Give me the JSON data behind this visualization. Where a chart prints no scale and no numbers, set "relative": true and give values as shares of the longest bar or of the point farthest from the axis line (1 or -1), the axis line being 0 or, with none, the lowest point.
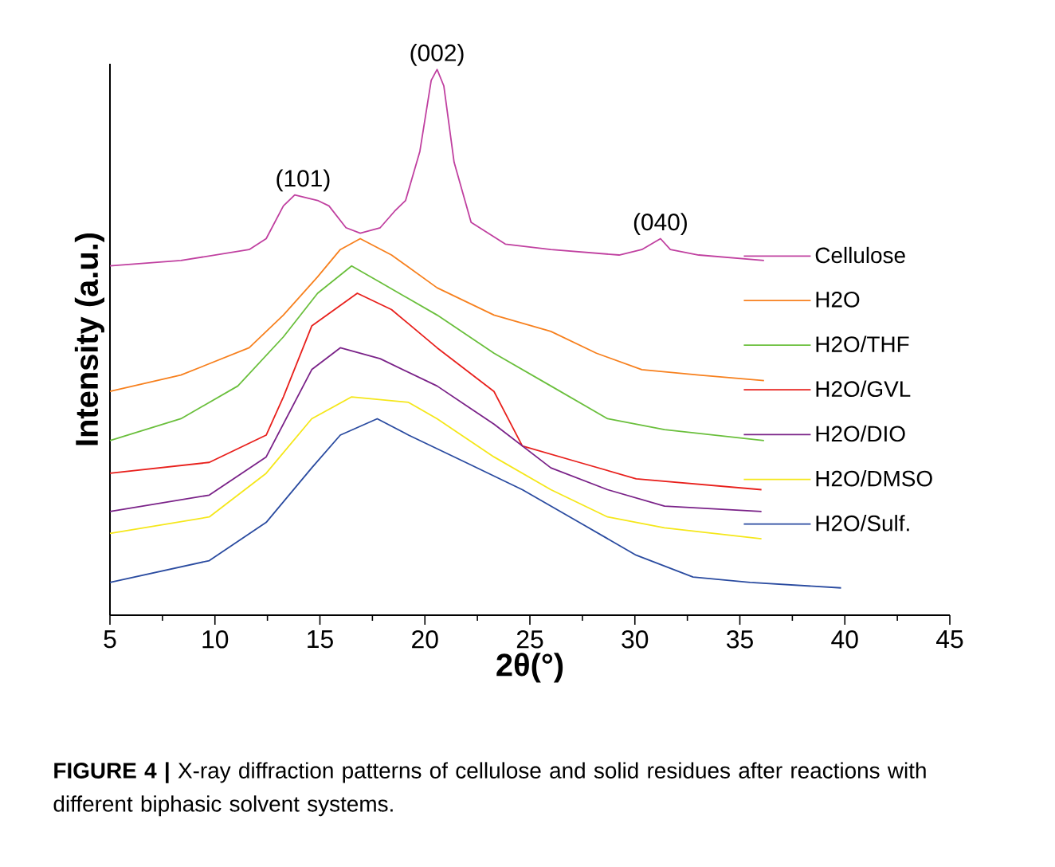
{
  "chart_data": {
    "type": "line",
    "relative": true,
    "xlabel": "2θ(°)",
    "ylabel": "Intensity (a.u.)",
    "xlim": [
      5,
      45
    ],
    "xticks": [
      5,
      10,
      15,
      20,
      25,
      30,
      35,
      40,
      45
    ],
    "tick_labels": "x",
    "legend": "right",
    "series": [
      {
        "name": "Cellulose",
        "color": "#c040a0",
        "x": [
          5,
          8.38,
          11.63,
          12.44,
          13.26,
          13.8,
          14.89,
          15.43,
          16.24,
          16.92,
          17.87,
          18.55,
          19.08,
          19.76,
          20.3,
          20.58,
          20.9,
          21.39,
          22.2,
          23.83,
          26,
          29.25,
          30.33,
          31.22,
          31.69,
          33.04,
          36.15
        ],
        "values": [
          0.64,
          0.65,
          0.67,
          0.69,
          0.75,
          0.77,
          0.76,
          0.75,
          0.71,
          0.7,
          0.71,
          0.74,
          0.76,
          0.85,
          0.98,
          1.0,
          0.97,
          0.83,
          0.72,
          0.68,
          0.67,
          0.66,
          0.67,
          0.69,
          0.67,
          0.66,
          0.65
        ]
      },
      {
        "name": "H2O",
        "color": "#f7801e",
        "x": [
          5,
          8.38,
          11.63,
          13.26,
          14.89,
          15.97,
          16.92,
          18.41,
          20.58,
          23.29,
          26,
          28.17,
          30.33,
          33.04,
          36.15
        ],
        "values": [
          0.41,
          0.44,
          0.49,
          0.55,
          0.62,
          0.67,
          0.69,
          0.66,
          0.6,
          0.55,
          0.52,
          0.48,
          0.45,
          0.44,
          0.43
        ]
      },
      {
        "name": "H2O/THF",
        "color": "#6abf3c",
        "x": [
          5,
          8.38,
          11.09,
          13.26,
          14.89,
          16.51,
          17.87,
          20.58,
          23.29,
          26,
          28.7,
          31.41,
          36.15
        ],
        "values": [
          0.32,
          0.36,
          0.42,
          0.51,
          0.59,
          0.64,
          0.61,
          0.55,
          0.48,
          0.42,
          0.36,
          0.34,
          0.32
        ]
      },
      {
        "name": "H2O/GVL",
        "color": "#e8201c",
        "x": [
          5,
          9.73,
          12.44,
          13.26,
          14.61,
          16.78,
          18.41,
          20.58,
          23.29,
          24.64,
          27.35,
          30.06,
          36.03
        ],
        "values": [
          0.26,
          0.28,
          0.33,
          0.4,
          0.53,
          0.59,
          0.56,
          0.49,
          0.41,
          0.31,
          0.28,
          0.25,
          0.23
        ]
      },
      {
        "name": "H2O/DIO",
        "color": "#7a2288",
        "x": [
          5,
          9.73,
          12.44,
          14.61,
          15.97,
          17.87,
          20.58,
          23.29,
          26,
          28.7,
          31.41,
          36.03
        ],
        "values": [
          0.19,
          0.22,
          0.29,
          0.45,
          0.49,
          0.47,
          0.42,
          0.35,
          0.27,
          0.23,
          0.2,
          0.19
        ]
      },
      {
        "name": "H2O/DMSO",
        "color": "#f5e71a",
        "x": [
          5,
          9.73,
          12.44,
          14.61,
          16.51,
          19.22,
          20.58,
          23.29,
          26,
          28.7,
          31.41,
          36.03
        ],
        "values": [
          0.15,
          0.18,
          0.26,
          0.36,
          0.4,
          0.39,
          0.36,
          0.29,
          0.23,
          0.18,
          0.16,
          0.14
        ]
      },
      {
        "name": "H2O/Sulf.",
        "color": "#2a4ba0",
        "x": [
          5,
          9.73,
          12.44,
          14.61,
          15.97,
          17.73,
          19.22,
          21.94,
          24.64,
          27.35,
          30.06,
          32.77,
          35.49,
          39.82
        ],
        "values": [
          0.06,
          0.1,
          0.17,
          0.27,
          0.33,
          0.36,
          0.33,
          0.28,
          0.23,
          0.17,
          0.11,
          0.07,
          0.06,
          0.05
        ]
      }
    ],
    "annotations": [
      {
        "text": "(101)",
        "x": 14.2,
        "y": 0.77
      },
      {
        "text": "(002)",
        "x": 20.58,
        "y": 1.0
      },
      {
        "text": "(040)",
        "x": 31.22,
        "y": 0.69
      },
      "**FIGURE 4 |** X-ray diffraction patterns of cellulose and solid residues after reactions with different biphasic solvent systems."
    ]
  }
}
